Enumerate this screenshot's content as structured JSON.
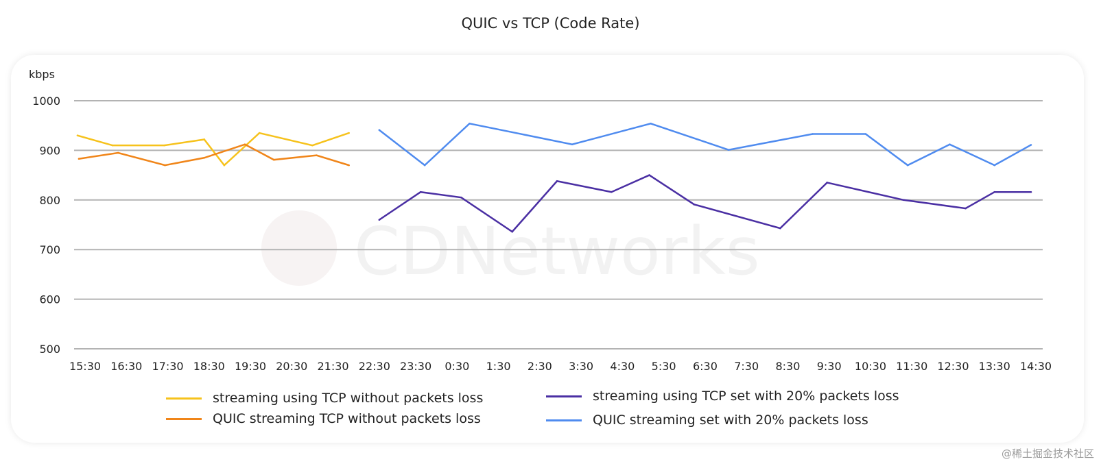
{
  "chart_data": {
    "type": "line",
    "title": "QUIC vs TCP (Code Rate)",
    "ylabel": "kbps",
    "xlabel": "",
    "ylim": [
      500,
      1000
    ],
    "yticks": [
      "1000",
      "900",
      "800",
      "700",
      "600",
      "500"
    ],
    "grid": true,
    "legend_position": "bottom",
    "categories": [
      "15:30",
      "16:30",
      "17:30",
      "18:30",
      "19:30",
      "20:30",
      "21:30",
      "22:30",
      "23:30",
      "0:30",
      "1:30",
      "2:30",
      "3:30",
      "4:30",
      "5:30",
      "6:30",
      "7:30",
      "8:30",
      "9:30",
      "10:30",
      "11:30",
      "12:30",
      "13:30",
      "14:30"
    ],
    "series": [
      {
        "name": "streaming using TCP without packets loss",
        "color": "#f6c21c",
        "x": [
          "15:19",
          "16:10",
          "17:25",
          "18:23",
          "18:52",
          "19:43",
          "21:00",
          "21:53"
        ],
        "values": [
          930,
          910,
          910,
          922,
          870,
          935,
          910,
          935
        ]
      },
      {
        "name": "QUIC streaming TCP without packets loss",
        "color": "#f08519",
        "x": [
          "15:21",
          "16:18",
          "17:26",
          "18:23",
          "19:22",
          "20:04",
          "21:06",
          "21:53"
        ],
        "values": [
          883,
          895,
          870,
          885,
          912,
          881,
          890,
          870
        ]
      },
      {
        "name": "streaming using TCP set with 20% packets loss",
        "color": "#4a2fa3",
        "x": [
          "22:37",
          "23:37",
          "0:36",
          "1:50",
          "2:55",
          "4:14",
          "5:09",
          "6:14",
          "8:19",
          "9:27",
          "11:18",
          "12:48",
          "13:30",
          "14:23"
        ],
        "values": [
          760,
          816,
          805,
          736,
          838,
          816,
          850,
          791,
          743,
          835,
          800,
          783,
          816,
          816
        ]
      },
      {
        "name": "QUIC streaming set with 20% packets loss",
        "color": "#4f8bef",
        "x": [
          "22:37",
          "23:43",
          "0:48",
          "3:17",
          "5:11",
          "7:04",
          "9:06",
          "10:23",
          "11:24",
          "12:25",
          "13:30",
          "14:23"
        ],
        "values": [
          941,
          870,
          954,
          912,
          954,
          901,
          933,
          933,
          870,
          912,
          870,
          911
        ]
      }
    ]
  },
  "watermark": "CDNetworks",
  "credit": "@稀土掘金技术社区"
}
